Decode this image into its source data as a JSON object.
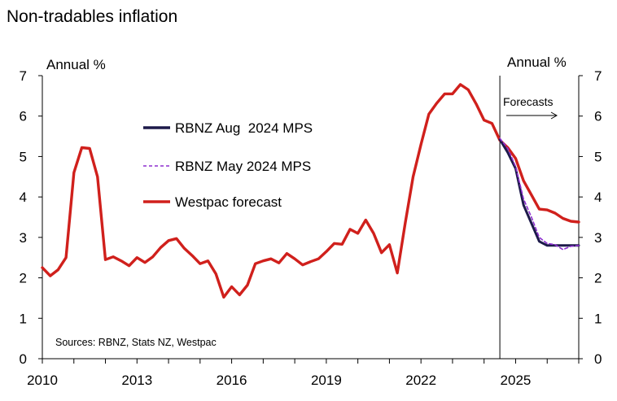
{
  "chart_data": {
    "type": "line",
    "title": "Non-tradables inflation",
    "ylabel_left": "Annual %",
    "ylabel_right": "Annual %",
    "ylim": [
      0,
      7
    ],
    "xlim": [
      2010.0,
      2027.0
    ],
    "yticks": [
      0,
      1,
      2,
      3,
      4,
      5,
      6,
      7
    ],
    "xticks": [
      {
        "value": 2010,
        "label": "2010"
      },
      {
        "value": 2013,
        "label": "2013"
      },
      {
        "value": 2016,
        "label": "2016"
      },
      {
        "value": 2019,
        "label": "2019"
      },
      {
        "value": 2022,
        "label": "2022"
      },
      {
        "value": 2025,
        "label": "2025"
      }
    ],
    "forecast_start": 2024.5,
    "forecast_label": "Forecasts",
    "source": "Sources: RBNZ, Stats NZ, Westpac",
    "series": [
      {
        "name": "Westpac forecast",
        "color": "#d0201c",
        "style": "solid",
        "x": [
          2010.0,
          2010.25,
          2010.5,
          2010.75,
          2011.0,
          2011.25,
          2011.5,
          2011.75,
          2012.0,
          2012.25,
          2012.5,
          2012.75,
          2013.0,
          2013.25,
          2013.5,
          2013.75,
          2014.0,
          2014.25,
          2014.5,
          2014.75,
          2015.0,
          2015.25,
          2015.5,
          2015.75,
          2016.0,
          2016.25,
          2016.5,
          2016.75,
          2017.0,
          2017.25,
          2017.5,
          2017.75,
          2018.0,
          2018.25,
          2018.5,
          2018.75,
          2019.0,
          2019.25,
          2019.5,
          2019.75,
          2020.0,
          2020.25,
          2020.5,
          2020.75,
          2021.0,
          2021.25,
          2021.5,
          2021.75,
          2022.0,
          2022.25,
          2022.5,
          2022.75,
          2023.0,
          2023.25,
          2023.5,
          2023.75,
          2024.0,
          2024.25,
          2024.5,
          2024.75,
          2025.0,
          2025.25,
          2025.5,
          2025.75,
          2026.0,
          2026.25,
          2026.5,
          2026.75,
          2027.0
        ],
        "values": [
          2.25,
          2.05,
          2.2,
          2.5,
          4.6,
          5.22,
          5.2,
          4.5,
          2.45,
          2.52,
          2.42,
          2.3,
          2.5,
          2.38,
          2.52,
          2.75,
          2.92,
          2.97,
          2.73,
          2.55,
          2.35,
          2.42,
          2.1,
          1.52,
          1.78,
          1.58,
          1.82,
          2.35,
          2.42,
          2.47,
          2.37,
          2.6,
          2.47,
          2.32,
          2.4,
          2.47,
          2.65,
          2.85,
          2.83,
          3.2,
          3.1,
          3.43,
          3.1,
          2.62,
          2.82,
          2.12,
          3.35,
          4.5,
          5.3,
          6.05,
          6.32,
          6.55,
          6.55,
          6.78,
          6.65,
          6.3,
          5.9,
          5.82,
          5.4,
          5.22,
          4.95,
          4.4,
          4.05,
          3.7,
          3.68,
          3.6,
          3.47,
          3.4,
          3.38
        ]
      },
      {
        "name": "RBNZ Aug  2024 MPS",
        "color": "#1d1a4a",
        "style": "solid",
        "x": [
          2024.5,
          2024.75,
          2025.0,
          2025.25,
          2025.5,
          2025.75,
          2026.0,
          2026.25,
          2026.5,
          2026.75,
          2027.0
        ],
        "values": [
          5.42,
          5.1,
          4.7,
          3.8,
          3.35,
          2.9,
          2.8,
          2.8,
          2.8,
          2.8,
          2.8
        ]
      },
      {
        "name": "RBNZ May 2024 MPS",
        "color": "#8d2fcf",
        "style": "dashed",
        "x": [
          2024.5,
          2024.75,
          2025.0,
          2025.25,
          2025.5,
          2025.75,
          2026.0,
          2026.25,
          2026.5,
          2026.75,
          2027.0
        ],
        "values": [
          5.45,
          5.2,
          4.75,
          3.95,
          3.5,
          3.0,
          2.85,
          2.82,
          2.7,
          2.78,
          2.8
        ]
      }
    ],
    "legend": [
      "RBNZ Aug  2024 MPS",
      "RBNZ May 2024 MPS",
      "Westpac forecast"
    ]
  }
}
